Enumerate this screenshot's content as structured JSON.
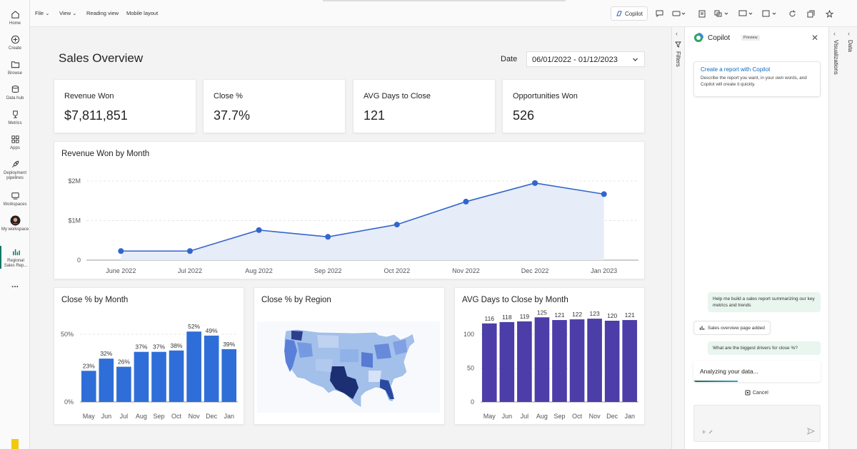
{
  "rail": {
    "items": [
      {
        "label": "Home"
      },
      {
        "label": "Create"
      },
      {
        "label": "Browse"
      },
      {
        "label": "Data hub"
      },
      {
        "label": "Metrics"
      },
      {
        "label": "Apps"
      },
      {
        "label": "Deployment pipelines"
      },
      {
        "label": "Workspaces"
      },
      {
        "label": "My workspace"
      },
      {
        "label": "Regional Sales Rep..."
      }
    ],
    "more": "..."
  },
  "topbar": {
    "file": "File",
    "view": "View",
    "reading_view": "Reading view",
    "mobile_layout": "Mobile layout",
    "copilot": "Copilot"
  },
  "report": {
    "title": "Sales Overview",
    "date_label": "Date",
    "date_range": "06/01/2022 - 01/12/2023"
  },
  "kpis": [
    {
      "label": "Revenue Won",
      "value": "$7,811,851"
    },
    {
      "label": "Close %",
      "value": "37.7%"
    },
    {
      "label": "AVG Days to Close",
      "value": "121"
    },
    {
      "label": "Opportunities Won",
      "value": "526"
    }
  ],
  "chart_data": [
    {
      "type": "area",
      "title": "Revenue Won by Month",
      "categories": [
        "June 2022",
        "Jul 2022",
        "Aug 2022",
        "Sep 2022",
        "Oct 2022",
        "Nov 2022",
        "Dec 2022",
        "Jan 2023"
      ],
      "values": [
        230000,
        230000,
        760000,
        590000,
        900000,
        1480000,
        1950000,
        1670000
      ],
      "yticks": [
        "0",
        "$1M",
        "$2M"
      ],
      "ylim": [
        0,
        2200000
      ],
      "color": "#3366cc",
      "fill": "#e7ecf9"
    },
    {
      "type": "bar",
      "title": "Close % by Month",
      "categories": [
        "May",
        "Jun",
        "Jul",
        "Aug",
        "Sep",
        "Oct",
        "Nov",
        "Dec",
        "Jan"
      ],
      "values": [
        23,
        32,
        26,
        37,
        37,
        38,
        52,
        49,
        39
      ],
      "labels": [
        "23%",
        "32%",
        "26%",
        "37%",
        "37%",
        "38%",
        "52%",
        "49%",
        "39%"
      ],
      "yticks": [
        "0%",
        "50%"
      ],
      "ylim": [
        0,
        50
      ],
      "color": "#2f6ed8"
    },
    {
      "type": "map",
      "title": "Close % by Region"
    },
    {
      "type": "bar",
      "title": "AVG Days to Close by Month",
      "categories": [
        "May",
        "Jun",
        "Jul",
        "Aug",
        "Sep",
        "Oct",
        "Nov",
        "Dec",
        "Jan"
      ],
      "values": [
        116,
        118,
        119,
        125,
        121,
        122,
        123,
        120,
        121
      ],
      "labels": [
        "116",
        "118",
        "119",
        "125",
        "121",
        "122",
        "123",
        "120",
        "121"
      ],
      "yticks": [
        "0",
        "50",
        "100"
      ],
      "ylim": [
        0,
        100
      ],
      "color": "#4b3ea8"
    }
  ],
  "panes": {
    "filters": "Filters",
    "visualizations": "Visualizations",
    "data": "Data"
  },
  "copilot": {
    "title": "Copilot",
    "badge": "Preview",
    "card_title": "Create a report with Copilot",
    "card_desc": "Describe the report you want, in your own words, and Copilot will create it quickly.",
    "msg1": "Help me build a sales report summarizing our key metrics and trends",
    "reply1": "Sales overview page added",
    "msg2": "What are the biggest drivers for close %?",
    "analyzing": "Analyzing your data...",
    "cancel": "Cancel"
  }
}
